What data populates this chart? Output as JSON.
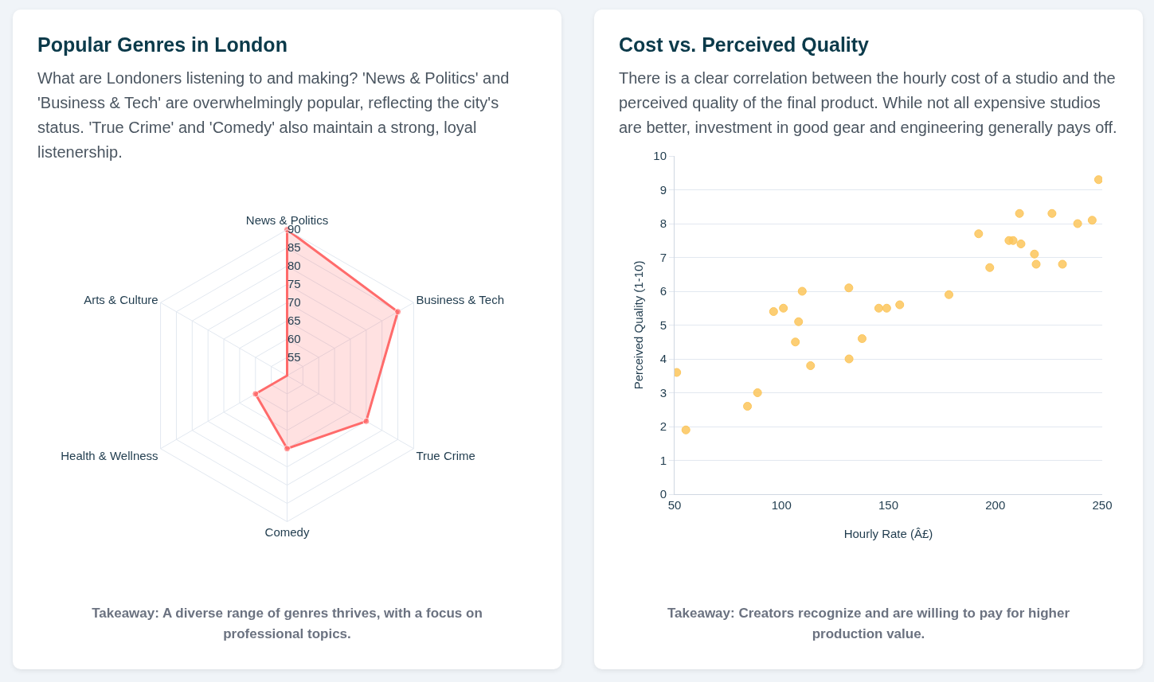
{
  "chart_data": [
    {
      "type": "radar",
      "title": "Popular Genres in London",
      "subtitle": "What are Londoners listening to and making? 'News & Politics' and 'Business & Tech' are overwhelmingly popular, reflecting the city's status. 'True Crime' and 'Comedy' also maintain a strong, loyal listenership.",
      "categories": [
        "News & Politics",
        "Business & Tech",
        "True Crime",
        "Comedy",
        "Health & Wellness",
        "Arts & Culture"
      ],
      "series": [
        {
          "color": "#ff6b6b",
          "values": [
            90,
            85,
            75,
            70,
            60,
            50
          ]
        }
      ],
      "ylim": [
        50,
        90
      ],
      "yticks": [
        55,
        60,
        65,
        70,
        75,
        80,
        85,
        90
      ],
      "grid": true,
      "marker": "circle",
      "legend": false,
      "annotations": [
        "Takeaway: A diverse range of genres thrives, with a focus on professional topics."
      ]
    },
    {
      "type": "scatter",
      "title": "Cost vs. Perceived Quality",
      "subtitle": "There is a clear correlation between the hourly cost of a studio and the perceived quality of the final product. While not all expensive studios are better, investment in good gear and engineering generally pays off.",
      "xlabel": "Hourly Rate (Â£)",
      "ylabel": "Perceived Quality (1-10)",
      "series": [
        {
          "color": "#fcc65c",
          "x": [
            51,
            55.3,
            84.1,
            88.8,
            96.3,
            100.9,
            109.7,
            108,
            106.5,
            113.6,
            131.5,
            131.6,
            137.7,
            145.5,
            149.2,
            155.3,
            178.3,
            192.2,
            197.4,
            206.4,
            208.3,
            212,
            211.3,
            218.3,
            219.1,
            226.5,
            231.4,
            238.5,
            245.3,
            248.3
          ],
          "values": [
            3.6,
            1.9,
            2.6,
            3,
            5.4,
            5.5,
            6,
            5.1,
            4.5,
            3.8,
            6.1,
            4,
            4.6,
            5.5,
            5.5,
            5.6,
            5.9,
            7.7,
            6.7,
            7.5,
            7.5,
            7.4,
            8.3,
            7.1,
            6.8,
            8.3,
            6.8,
            8,
            8.1,
            9.3
          ]
        }
      ],
      "xlim": [
        50,
        250
      ],
      "xticks": [
        50,
        100,
        150,
        200,
        250
      ],
      "ylim": [
        0,
        10
      ],
      "yticks": [
        0,
        1,
        2,
        3,
        4,
        5,
        6,
        7,
        8,
        9,
        10
      ],
      "grid": "y",
      "marker": "circle",
      "legend": false,
      "annotations": [
        "Takeaway: Creators recognize and are willing to pay for higher production value."
      ]
    }
  ]
}
